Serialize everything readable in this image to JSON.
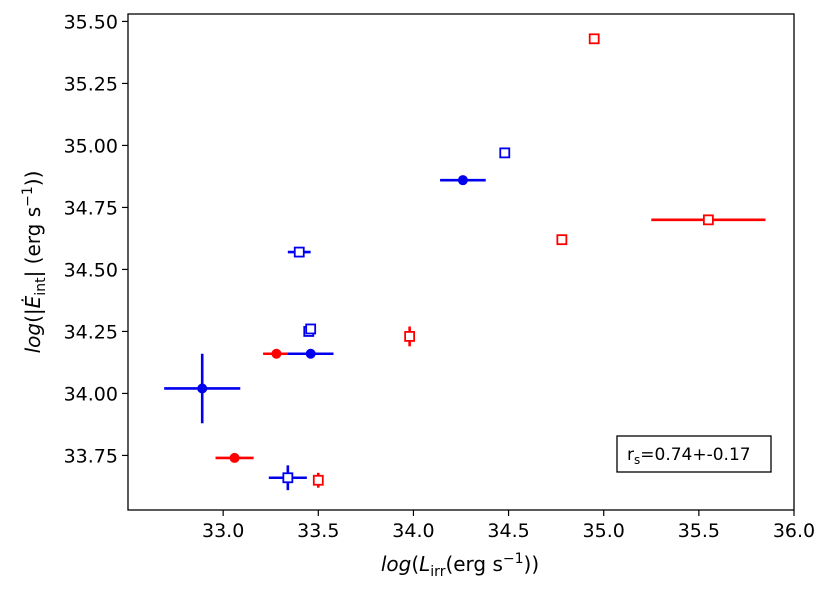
{
  "chart_data": {
    "type": "scatter",
    "xlabel": "log(L_irr(erg s^-1))",
    "ylabel": "log(|Ė_int| (erg s^-1))",
    "xlim": [
      32.5,
      36.0
    ],
    "ylim": [
      33.53,
      35.53
    ],
    "xticks": [
      33.0,
      33.5,
      34.0,
      34.5,
      35.0,
      35.5,
      36.0
    ],
    "xtick_labels": [
      "33.0",
      "33.5",
      "34.0",
      "34.5",
      "35.0",
      "35.5",
      "36.0"
    ],
    "yticks": [
      33.75,
      34.0,
      34.25,
      34.5,
      34.75,
      35.0,
      35.25,
      35.5
    ],
    "ytick_labels": [
      "33.75",
      "34.00",
      "34.25",
      "34.50",
      "34.75",
      "35.00",
      "35.25",
      "35.50"
    ],
    "grid": false,
    "annotation": {
      "text": "r_s=0.74+-0.17",
      "placement": "lower-right"
    },
    "colors": {
      "red": "#ff0000",
      "blue": "#0000ee"
    },
    "series": [
      {
        "color": "red",
        "marker": "filled-circle",
        "points": [
          {
            "x": 33.06,
            "y": 33.74,
            "xerr": 0.1,
            "yerr": 0.0
          },
          {
            "x": 33.28,
            "y": 34.16,
            "xerr": 0.07,
            "yerr": 0.0
          }
        ]
      },
      {
        "color": "blue",
        "marker": "filled-circle",
        "points": [
          {
            "x": 32.89,
            "y": 34.02,
            "xerr": 0.2,
            "yerr": 0.14
          },
          {
            "x": 33.46,
            "y": 34.16,
            "xerr": 0.12,
            "yerr": 0.0
          },
          {
            "x": 34.26,
            "y": 34.86,
            "xerr": 0.12,
            "yerr": 0.0
          }
        ]
      },
      {
        "color": "red",
        "marker": "open-square",
        "points": [
          {
            "x": 33.5,
            "y": 33.65,
            "xerr": 0.0,
            "yerr": 0.03
          },
          {
            "x": 33.98,
            "y": 34.23,
            "xerr": 0.0,
            "yerr": 0.04
          },
          {
            "x": 34.78,
            "y": 34.62,
            "xerr": 0.0,
            "yerr": 0.0
          },
          {
            "x": 34.95,
            "y": 35.43,
            "xerr": 0.0,
            "yerr": 0.0
          },
          {
            "x": 35.55,
            "y": 34.7,
            "xerr": 0.3,
            "yerr": 0.0
          }
        ]
      },
      {
        "color": "blue",
        "marker": "open-square",
        "points": [
          {
            "x": 33.34,
            "y": 33.66,
            "xerr": 0.1,
            "yerr": 0.05
          },
          {
            "x": 33.4,
            "y": 34.57,
            "xerr": 0.06,
            "yerr": 0.0
          },
          {
            "x": 33.45,
            "y": 34.25,
            "xerr": 0.0,
            "yerr": 0.0
          },
          {
            "x": 33.46,
            "y": 34.26,
            "xerr": 0.0,
            "yerr": 0.0
          },
          {
            "x": 34.48,
            "y": 34.97,
            "xerr": 0.0,
            "yerr": 0.0
          }
        ]
      }
    ]
  }
}
